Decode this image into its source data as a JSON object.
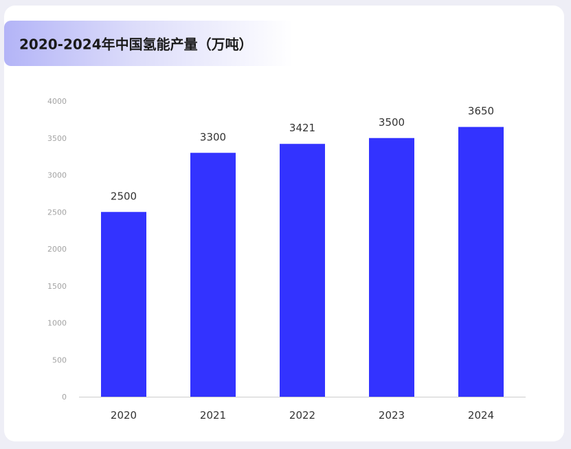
{
  "title": "2020-2024年中国氢能产量（万吨）",
  "colors": {
    "bar": "#3333ff",
    "axis": "#cccccc",
    "title_gradient_start": "#b3b4f7"
  },
  "chart_data": {
    "type": "bar",
    "title": "2020-2024年中国氢能产量（万吨）",
    "categories": [
      "2020",
      "2021",
      "2022",
      "2023",
      "2024"
    ],
    "values": [
      2500,
      3300,
      3421,
      3500,
      3650
    ],
    "value_labels": [
      "2500",
      "3300",
      "3421",
      "3500",
      "3650"
    ],
    "ylim": [
      0,
      4000
    ],
    "yticks": [
      0,
      500,
      1000,
      1500,
      2000,
      2500,
      3000,
      3500,
      4000
    ],
    "ytick_labels": [
      "0",
      "500",
      "1000",
      "1500",
      "2000",
      "2500",
      "3000",
      "3500",
      "4000"
    ],
    "xlabel": "",
    "ylabel": "",
    "grid": false,
    "legend": "none"
  }
}
